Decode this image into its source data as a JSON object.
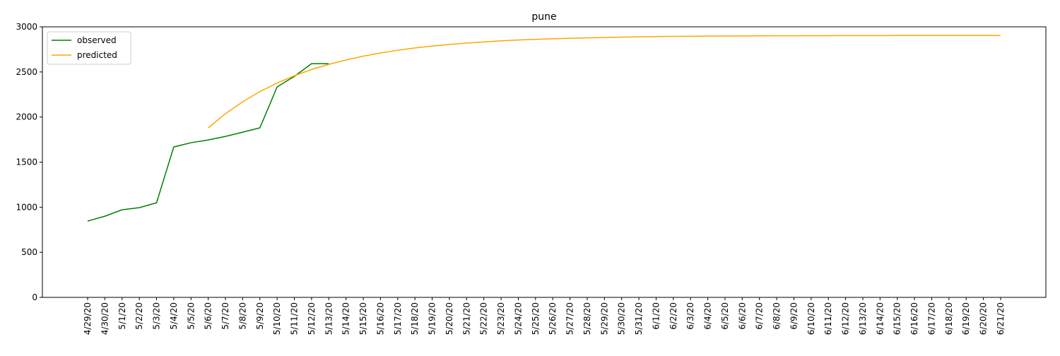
{
  "chart_data": {
    "type": "line",
    "title": "pune",
    "categories": [
      "4/29/20",
      "4/30/20",
      "5/1/20",
      "5/2/20",
      "5/3/20",
      "5/4/20",
      "5/5/20",
      "5/6/20",
      "5/7/20",
      "5/8/20",
      "5/9/20",
      "5/10/20",
      "5/11/20",
      "5/12/20",
      "5/13/20",
      "5/14/20",
      "5/15/20",
      "5/16/20",
      "5/17/20",
      "5/18/20",
      "5/19/20",
      "5/20/20",
      "5/21/20",
      "5/22/20",
      "5/23/20",
      "5/24/20",
      "5/25/20",
      "5/26/20",
      "5/27/20",
      "5/28/20",
      "5/29/20",
      "5/30/20",
      "5/31/20",
      "6/1/20",
      "6/2/20",
      "6/3/20",
      "6/4/20",
      "6/5/20",
      "6/6/20",
      "6/7/20",
      "6/8/20",
      "6/9/20",
      "6/10/20",
      "6/11/20",
      "6/12/20",
      "6/13/20",
      "6/14/20",
      "6/15/20",
      "6/16/20",
      "6/17/20",
      "6/18/20",
      "6/19/20",
      "6/20/20",
      "6/21/20"
    ],
    "series": [
      {
        "name": "observed",
        "color": "green",
        "values": [
          846,
          900,
          971,
          995,
          1049,
          1668,
          1715,
          1746,
          1785,
          1832,
          1880,
          2334,
          2451,
          2592,
          2592,
          null,
          null,
          null,
          null,
          null,
          null,
          null,
          null,
          null,
          null,
          null,
          null,
          null,
          null,
          null,
          null,
          null,
          null,
          null,
          null,
          null,
          null,
          null,
          null,
          null,
          null,
          null,
          null,
          null,
          null,
          null,
          null,
          null,
          null,
          null,
          null,
          null,
          null,
          null
        ]
      },
      {
        "name": "predicted",
        "color": "orange",
        "values": [
          null,
          null,
          null,
          null,
          null,
          null,
          null,
          1880,
          2037,
          2169,
          2282,
          2377,
          2458,
          2527,
          2584,
          2633,
          2675,
          2710,
          2740,
          2766,
          2787,
          2805,
          2820,
          2833,
          2845,
          2854,
          2861,
          2868,
          2873,
          2878,
          2882,
          2886,
          2889,
          2892,
          2894,
          2895,
          2897,
          2898,
          2899,
          2900,
          2901,
          2901,
          2902,
          2902,
          2903,
          2903,
          2903,
          2904,
          2904,
          2904,
          2904,
          2904,
          2904,
          2904
        ]
      }
    ],
    "ylim": [
      0,
      3000
    ],
    "yticks": [
      0,
      500,
      1000,
      1500,
      2000,
      2500,
      3000
    ],
    "legend": "upper left"
  }
}
